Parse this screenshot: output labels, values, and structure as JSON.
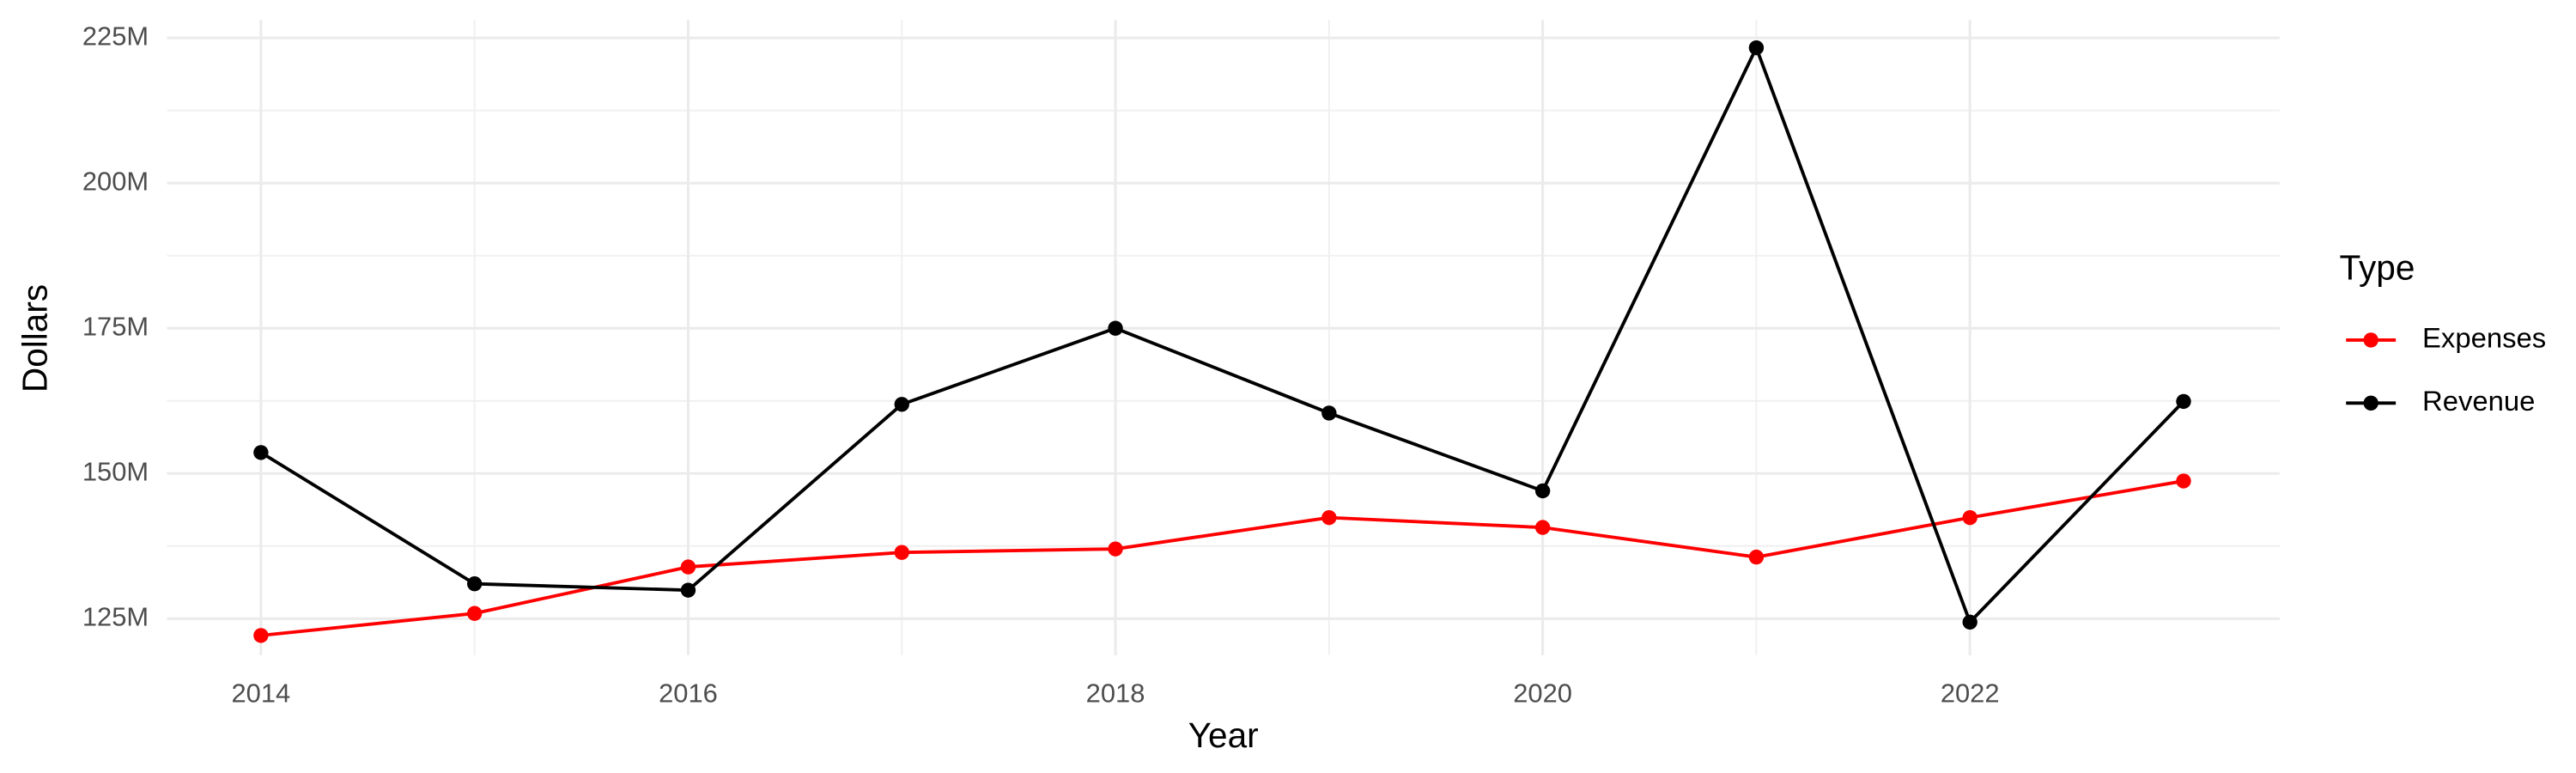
{
  "chart_data": {
    "type": "line",
    "x_label": "Year",
    "y_label": "Dollars",
    "legend_title": "Type",
    "legend_position": "right",
    "grid": true,
    "x": [
      2014,
      2015,
      2016,
      2017,
      2018,
      2019,
      2020,
      2021,
      2022,
      2023
    ],
    "series": [
      {
        "name": "Expenses",
        "color": "#ff0000",
        "values": [
          122100000,
          125900000,
          133900000,
          136400000,
          137000000,
          142400000,
          140700000,
          135600000,
          142400000,
          148700000
        ]
      },
      {
        "name": "Revenue",
        "color": "#000000",
        "values": [
          153600000,
          131000000,
          129900000,
          161900000,
          175000000,
          160400000,
          147000000,
          223300000,
          124400000,
          162400000
        ]
      }
    ],
    "xlim": [
      2013.56,
      2023.45
    ],
    "xticks": [
      2014,
      2016,
      2018,
      2020,
      2022
    ],
    "ylim": [
      118700000,
      228100000
    ],
    "yticks": [
      {
        "value": 125000000,
        "label": "125M"
      },
      {
        "value": 150000000,
        "label": "150M"
      },
      {
        "value": 175000000,
        "label": "175M"
      },
      {
        "value": 200000000,
        "label": "200M"
      },
      {
        "value": 225000000,
        "label": "225M"
      }
    ]
  }
}
